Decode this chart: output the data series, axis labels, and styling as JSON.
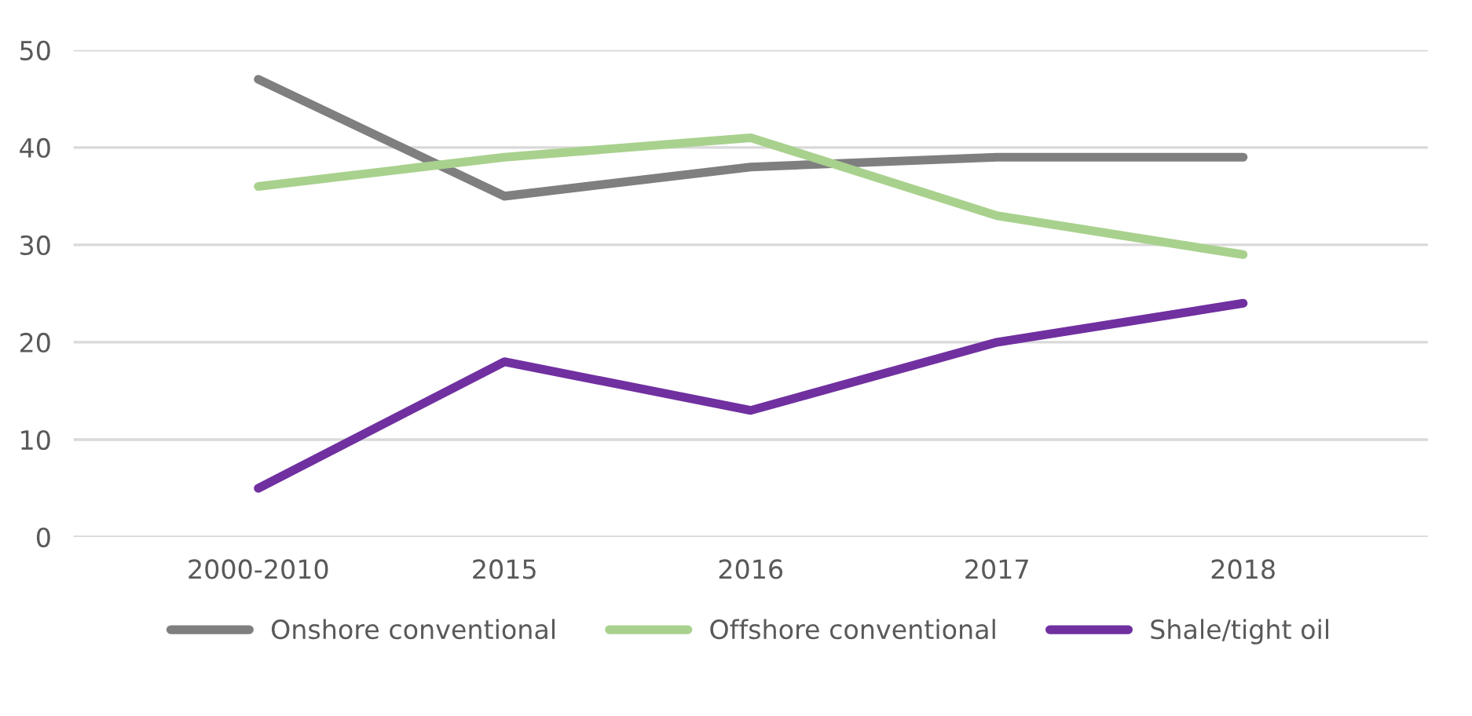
{
  "chart_data": {
    "type": "line",
    "categories": [
      "2000-2010",
      "2015",
      "2016",
      "2017",
      "2018"
    ],
    "series": [
      {
        "name": "Onshore conventional",
        "color": "#7f7f7f",
        "values": [
          47,
          35,
          38,
          39,
          39
        ]
      },
      {
        "name": "Offshore conventional",
        "color": "#a9d18e",
        "values": [
          36,
          39,
          41,
          33,
          29
        ]
      },
      {
        "name": "Shale/tight oil",
        "color": "#7030a0",
        "values": [
          5,
          18,
          13,
          20,
          24
        ]
      }
    ],
    "ylim": [
      0,
      50
    ],
    "yticks": [
      0,
      10,
      20,
      30,
      40,
      50
    ],
    "grid": "y",
    "legend": "bottom",
    "marker": "none",
    "line_style": "solid"
  }
}
